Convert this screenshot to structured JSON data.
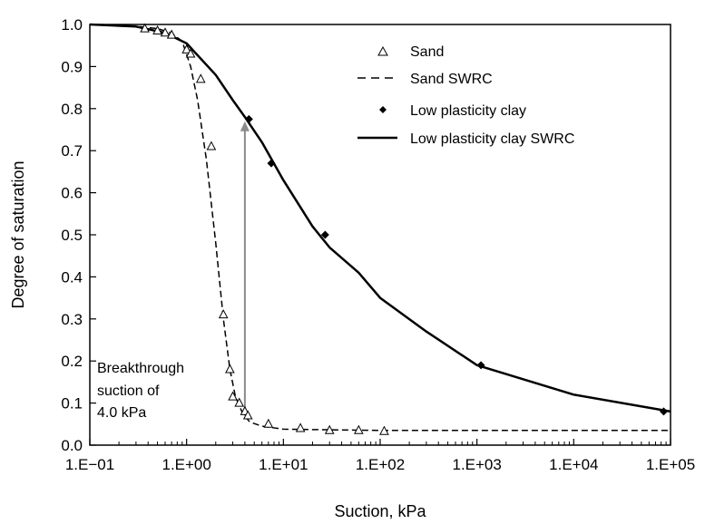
{
  "chart_data": {
    "type": "scatter",
    "xlabel": "Suction, kPa",
    "ylabel": "Degree of saturation",
    "x_scale": "log",
    "xlim": [
      0.1,
      100000
    ],
    "ylim": [
      0.0,
      1.0
    ],
    "x_ticks": [
      {
        "value": 0.1,
        "label": "1.E−01"
      },
      {
        "value": 1,
        "label": "1.E+00"
      },
      {
        "value": 10,
        "label": "1.E+01"
      },
      {
        "value": 100,
        "label": "1.E+02"
      },
      {
        "value": 1000,
        "label": "1.E+03"
      },
      {
        "value": 10000,
        "label": "1.E+04"
      },
      {
        "value": 100000,
        "label": "1.E+05"
      }
    ],
    "y_ticks": [
      {
        "value": 0.0,
        "label": "0.0"
      },
      {
        "value": 0.1,
        "label": "0.1"
      },
      {
        "value": 0.2,
        "label": "0.2"
      },
      {
        "value": 0.3,
        "label": "0.3"
      },
      {
        "value": 0.4,
        "label": "0.4"
      },
      {
        "value": 0.5,
        "label": "0.5"
      },
      {
        "value": 0.6,
        "label": "0.6"
      },
      {
        "value": 0.7,
        "label": "0.7"
      },
      {
        "value": 0.8,
        "label": "0.8"
      },
      {
        "value": 0.9,
        "label": "0.9"
      },
      {
        "value": 1.0,
        "label": "1.0"
      }
    ],
    "grid": false,
    "legend_position": "top-right",
    "series": [
      {
        "name": "Sand",
        "kind": "points",
        "marker": "open-triangle",
        "color": "#000000",
        "points": [
          [
            0.37,
            0.99
          ],
          [
            0.5,
            0.985
          ],
          [
            0.6,
            0.98
          ],
          [
            0.7,
            0.975
          ],
          [
            1.0,
            0.94
          ],
          [
            1.1,
            0.93
          ],
          [
            1.4,
            0.87
          ],
          [
            1.8,
            0.71
          ],
          [
            2.4,
            0.31
          ],
          [
            2.8,
            0.18
          ],
          [
            3.0,
            0.115
          ],
          [
            3.5,
            0.1
          ],
          [
            4.0,
            0.08
          ],
          [
            4.3,
            0.07
          ],
          [
            7.0,
            0.05
          ],
          [
            15.0,
            0.04
          ],
          [
            30.0,
            0.035
          ],
          [
            60.0,
            0.035
          ],
          [
            110.0,
            0.033
          ]
        ]
      },
      {
        "name": "Sand SWRC",
        "kind": "line",
        "dash": "dashed",
        "color": "#000000",
        "points": [
          [
            0.1,
            1.0
          ],
          [
            0.3,
            0.996
          ],
          [
            0.5,
            0.99
          ],
          [
            0.7,
            0.98
          ],
          [
            0.9,
            0.96
          ],
          [
            1.1,
            0.9
          ],
          [
            1.3,
            0.82
          ],
          [
            1.6,
            0.68
          ],
          [
            2.0,
            0.48
          ],
          [
            2.4,
            0.3
          ],
          [
            2.8,
            0.18
          ],
          [
            3.2,
            0.115
          ],
          [
            3.8,
            0.075
          ],
          [
            4.5,
            0.055
          ],
          [
            6.0,
            0.045
          ],
          [
            10.0,
            0.038
          ],
          [
            100.0,
            0.035
          ],
          [
            100000.0,
            0.035
          ]
        ]
      },
      {
        "name": "Low plasticity clay",
        "kind": "points",
        "marker": "filled-diamond",
        "color": "#000000",
        "points": [
          [
            4.4,
            0.775
          ],
          [
            7.5,
            0.67
          ],
          [
            27.0,
            0.5
          ],
          [
            1100.0,
            0.19
          ],
          [
            85000.0,
            0.08
          ]
        ]
      },
      {
        "name": "Low plasticity clay SWRC",
        "kind": "line",
        "dash": "solid",
        "color": "#000000",
        "points": [
          [
            0.1,
            1.0
          ],
          [
            0.3,
            0.995
          ],
          [
            0.6,
            0.98
          ],
          [
            1.0,
            0.955
          ],
          [
            2.0,
            0.88
          ],
          [
            3.0,
            0.82
          ],
          [
            4.0,
            0.78
          ],
          [
            6.0,
            0.72
          ],
          [
            10.0,
            0.63
          ],
          [
            20.0,
            0.52
          ],
          [
            30.0,
            0.47
          ],
          [
            60.0,
            0.41
          ],
          [
            100.0,
            0.35
          ],
          [
            300.0,
            0.27
          ],
          [
            1000.0,
            0.19
          ],
          [
            10000.0,
            0.12
          ],
          [
            100000.0,
            0.08
          ]
        ]
      }
    ],
    "annotations": {
      "breakthrough": {
        "lines": [
          "Breakthrough",
          "suction of",
          "4.0 kPa"
        ],
        "arrow_x": 4.0,
        "arrow_from_y": 0.07,
        "arrow_to_y": 0.77
      }
    }
  }
}
